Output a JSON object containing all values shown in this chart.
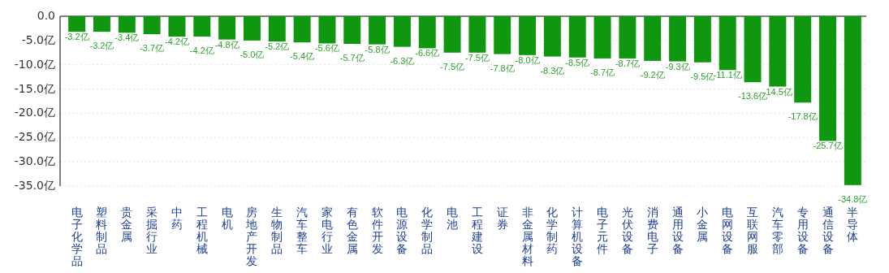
{
  "chart_data": {
    "type": "bar",
    "categories": [
      "电子化学品",
      "塑料制品",
      "贵金属",
      "采掘行业",
      "中药",
      "工程机械",
      "电机",
      "房地产开发",
      "生物制品",
      "汽车整车",
      "家电行业",
      "有色金属",
      "软件开发",
      "电源设备",
      "化学制品",
      "电池",
      "工程建设",
      "证券",
      "非金属材料",
      "化学制药",
      "计算机设备",
      "电子元件",
      "光伏设备",
      "消费电子",
      "通用设备",
      "小金属",
      "电网设备",
      "互联网服",
      "汽车零部",
      "专用设备",
      "通信设备",
      "半导体"
    ],
    "values": [
      -3.2,
      -3.2,
      -3.4,
      -3.7,
      -4.2,
      -4.2,
      -4.8,
      -5.0,
      -5.2,
      -5.4,
      -5.6,
      -5.7,
      -5.8,
      -6.3,
      -6.6,
      -7.5,
      -7.5,
      -7.8,
      -8.0,
      -8.3,
      -8.5,
      -8.7,
      -8.7,
      -9.2,
      -9.3,
      -9.5,
      -11.1,
      -13.6,
      -14.5,
      -17.8,
      -25.7,
      -34.8
    ],
    "value_labels": [
      "-3.2亿",
      "-3.2亿",
      "-3.4亿",
      "-3.7亿",
      "-4.2亿",
      "-4.2亿",
      "-4.8亿",
      "-5.0亿",
      "-5.2亿",
      "-5.4亿",
      "-5.6亿",
      "-5.7亿",
      "-5.8亿",
      "-6.3亿",
      "-6.6亿",
      "-7.5亿",
      "-7.5亿",
      "-7.8亿",
      "-8.0亿",
      "-8.3亿",
      "-8.5亿",
      "-8.7亿",
      "-8.7亿",
      "-9.2亿",
      "-9.3亿",
      "-9.5亿",
      "-11.1亿",
      "-13.6亿",
      "-14.5亿",
      "-17.8亿",
      "-25.7亿",
      "-34.8亿"
    ],
    "color": "#0f970f",
    "ylim": [
      -35,
      0
    ],
    "yticks": [
      {
        "value": 0,
        "label": "0.0"
      },
      {
        "value": -5,
        "label": "-5.0亿"
      },
      {
        "value": -10,
        "label": "-10.0亿"
      },
      {
        "value": -15,
        "label": "-15.0亿"
      },
      {
        "value": -20,
        "label": "-20.0亿"
      },
      {
        "value": -25,
        "label": "-25.0亿"
      },
      {
        "value": -30,
        "label": "-30.0亿"
      },
      {
        "value": -35,
        "label": "-35.0亿"
      }
    ],
    "grid": "y"
  }
}
